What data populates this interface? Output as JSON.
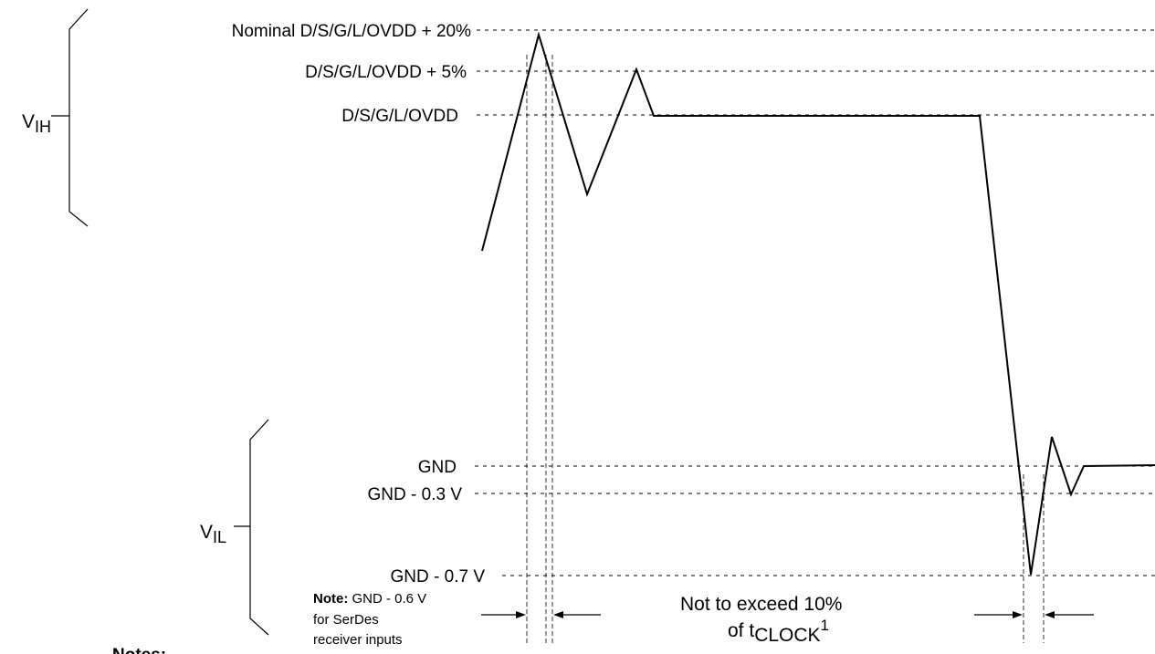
{
  "levels": {
    "nominal_plus_20": "Nominal D/S/G/L/OVDD + 20%",
    "plus_5": "D/S/G/L/OVDD + 5%",
    "vdd": "D/S/G/L/OVDD",
    "gnd": "GND",
    "gnd_minus_03": "GND - 0.3 V",
    "gnd_minus_07": "GND - 0.7 V"
  },
  "ranges": {
    "vih_main": "V",
    "vih_sub": "IH",
    "vil_main": "V",
    "vil_sub": "IL"
  },
  "note": {
    "label": "Note:",
    "line1": " GND - 0.6 V",
    "line2": "for SerDes",
    "line3": "receiver inputs"
  },
  "timing": {
    "line1": "Not to exceed 10%",
    "line2_prefix": "of t",
    "line2_sub": "CLOCK",
    "line2_sup": "1"
  },
  "footer": {
    "notes": "Notes:"
  }
}
